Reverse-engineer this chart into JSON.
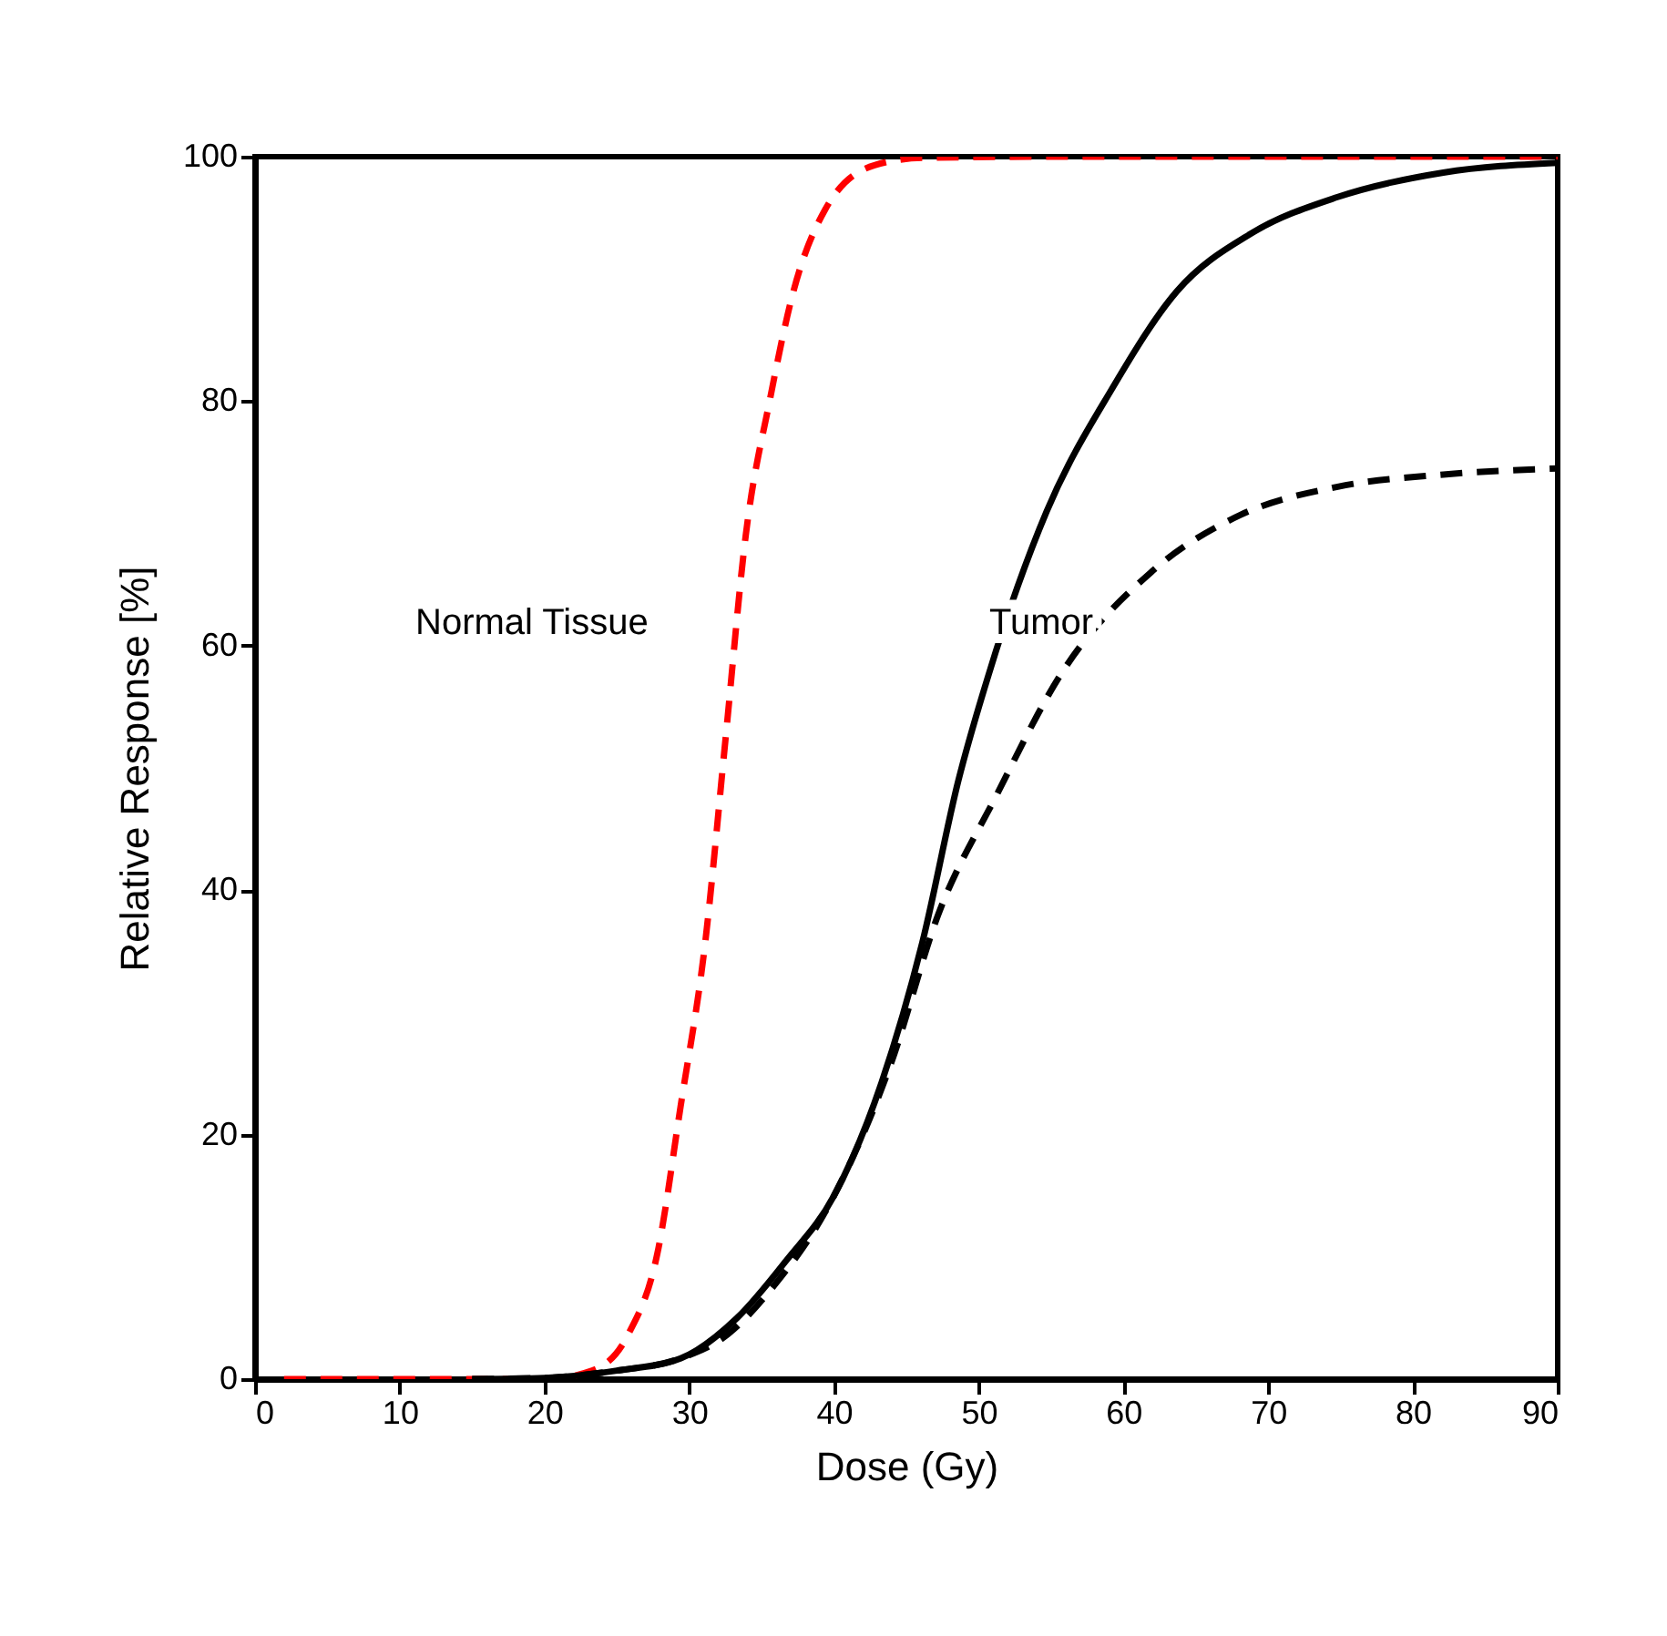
{
  "chart_data": {
    "type": "line",
    "xlabel": "Dose (Gy)",
    "ylabel": "Relative Response [%]",
    "xlim": [
      0,
      90
    ],
    "ylim": [
      0,
      100
    ],
    "xticks": [
      0,
      10,
      20,
      30,
      40,
      50,
      60,
      70,
      80,
      90
    ],
    "yticks": [
      0,
      20,
      40,
      60,
      80,
      100
    ],
    "grid": false,
    "series": [
      {
        "color": "#ff0000",
        "line_style": "dashed",
        "x": [
          2,
          10,
          20,
          23.3,
          25.8,
          27.8,
          29.4,
          31.1,
          32.5,
          33.9,
          35.6,
          37.2,
          39.4,
          42.8,
          46.1,
          55,
          70,
          90
        ],
        "values": [
          0,
          0,
          0,
          0.7,
          3.7,
          10.3,
          22.3,
          35.7,
          52.3,
          69,
          80.3,
          89,
          95.7,
          99.3,
          99.9,
          100,
          100,
          100
        ]
      },
      {
        "color": "#000000",
        "line_style": "solid",
        "x": [
          15,
          20,
          25,
          29.4,
          33.3,
          36.7,
          40,
          43.3,
          46.1,
          48.6,
          50.7,
          54.7,
          59.2,
          63.7,
          68.8,
          74.8,
          82.1,
          90
        ],
        "values": [
          0,
          0.1,
          0.7,
          1.7,
          5,
          9.7,
          15,
          24.3,
          35.7,
          49,
          57.7,
          71,
          81,
          89,
          93.7,
          96.7,
          98.7,
          99.5
        ]
      },
      {
        "color": "#000000",
        "line_style": "dashed",
        "x": [
          15,
          20,
          25,
          29.4,
          32.7,
          35.4,
          40,
          43.9,
          47.2,
          51.2,
          55.7,
          61.9,
          68.1,
          74.8,
          82.1,
          90
        ],
        "values": [
          0,
          0.1,
          0.7,
          1.7,
          3.7,
          7,
          15,
          25.7,
          38,
          47.7,
          57.7,
          66,
          70.7,
          73,
          74,
          74.5
        ]
      }
    ],
    "annotations": [
      "Normal Tissue",
      "Tumor"
    ]
  }
}
